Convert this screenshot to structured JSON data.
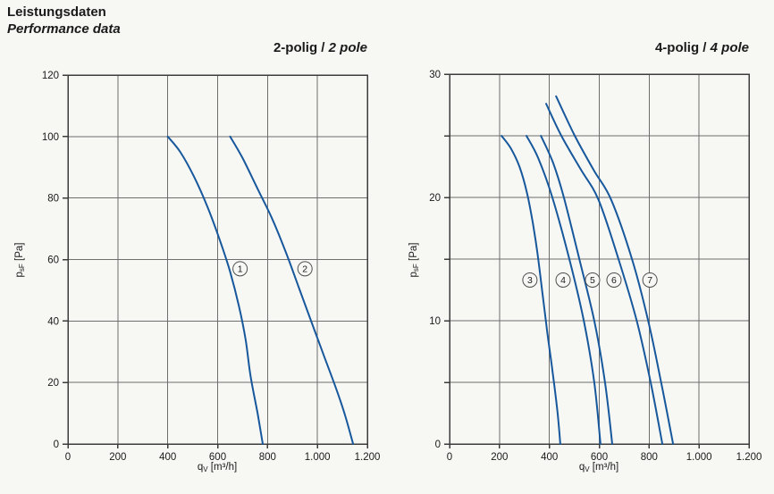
{
  "page": {
    "title_de": "Leistungsdaten",
    "title_en": "Performance data"
  },
  "colors": {
    "background": "#f7f7f4",
    "text": "#1a1a1a",
    "curve": "#17589c",
    "grid": "#6e6e6e",
    "border": "#3c3c3c",
    "marker_stroke": "#4d4d4d"
  },
  "chart_data": [
    {
      "type": "line",
      "title_bold": "2-polig / ",
      "title_italic": "2 pole",
      "xlabel": {
        "base": "q",
        "sub": "V",
        "rest": " [m³/h]"
      },
      "ylabel": {
        "base": "p",
        "sub": "sF",
        "rest": " [Pa]"
      },
      "xlim": [
        0,
        1200
      ],
      "ylim": [
        0,
        120
      ],
      "x_grid_step": 200,
      "x_tick_labels": [
        "0",
        "200",
        "400",
        "600",
        "800",
        "1.000",
        "1.200"
      ],
      "y_grid_step": 20,
      "y_label_step": 20,
      "grid": true,
      "legend": "none",
      "series": [
        {
          "name": "1",
          "marker": {
            "x": 690,
            "y": 57
          },
          "points": [
            [
              400,
              100
            ],
            [
              450,
              95
            ],
            [
              505,
              87
            ],
            [
              560,
              77
            ],
            [
              610,
              66
            ],
            [
              650,
              56
            ],
            [
              685,
              45
            ],
            [
              712,
              34
            ],
            [
              732,
              22
            ],
            [
              760,
              10
            ],
            [
              781,
              0
            ]
          ]
        },
        {
          "name": "2",
          "marker": {
            "x": 950,
            "y": 57
          },
          "points": [
            [
              650,
              100
            ],
            [
              700,
              93
            ],
            [
              760,
              83
            ],
            [
              820,
              73
            ],
            [
              875,
              62
            ],
            [
              925,
              51
            ],
            [
              970,
              41
            ],
            [
              1020,
              30
            ],
            [
              1075,
              18
            ],
            [
              1112,
              9
            ],
            [
              1143,
              0
            ]
          ]
        }
      ]
    },
    {
      "type": "line",
      "title_bold": "4-polig / ",
      "title_italic": "4 pole",
      "xlabel": {
        "base": "q",
        "sub": "V",
        "rest": " [m³/h]"
      },
      "ylabel": {
        "base": "p",
        "sub": "sF",
        "rest": " [Pa]"
      },
      "xlim": [
        0,
        1200
      ],
      "ylim": [
        0,
        30
      ],
      "x_grid_step": 200,
      "x_tick_labels": [
        "0",
        "200",
        "400",
        "600",
        "800",
        "1.000",
        "1.200"
      ],
      "y_grid_step": 5,
      "y_label_step": 10,
      "grid": true,
      "legend": "none",
      "series": [
        {
          "name": "3",
          "marker": {
            "x": 322,
            "y": 13.3
          },
          "points": [
            [
              208,
              25
            ],
            [
              245,
              24
            ],
            [
              280,
              22.5
            ],
            [
              310,
              20.4
            ],
            [
              333,
              18
            ],
            [
              352,
              15.5
            ],
            [
              372,
              12.3
            ],
            [
              392,
              9
            ],
            [
              412,
              6
            ],
            [
              432,
              2.7
            ],
            [
              444,
              0
            ]
          ]
        },
        {
          "name": "4",
          "marker": {
            "x": 455,
            "y": 13.3
          },
          "points": [
            [
              308,
              25
            ],
            [
              355,
              23.2
            ],
            [
              412,
              20
            ],
            [
              480,
              15
            ],
            [
              538,
              10
            ],
            [
              580,
              5
            ],
            [
              605,
              0
            ]
          ]
        },
        {
          "name": "5",
          "marker": {
            "x": 573,
            "y": 13.3
          },
          "points": [
            [
              366,
              25
            ],
            [
              415,
              22.8
            ],
            [
              458,
              20
            ],
            [
              520,
              15
            ],
            [
              580,
              10
            ],
            [
              623,
              5
            ],
            [
              652,
              0
            ]
          ]
        },
        {
          "name": "6",
          "marker": {
            "x": 659,
            "y": 13.3
          },
          "points": [
            [
              387,
              27.6
            ],
            [
              448,
              25
            ],
            [
              525,
              22.3
            ],
            [
              597,
              19.8
            ],
            [
              677,
              15
            ],
            [
              750,
              10
            ],
            [
              806,
              5
            ],
            [
              853,
              0
            ]
          ]
        },
        {
          "name": "7",
          "marker": {
            "x": 803,
            "y": 13.3
          },
          "points": [
            [
              427,
              28.2
            ],
            [
              502,
              25
            ],
            [
              578,
              22.2
            ],
            [
              648,
              19.8
            ],
            [
              731,
              15
            ],
            [
              796,
              10
            ],
            [
              848,
              5
            ],
            [
              896,
              0
            ]
          ]
        }
      ]
    }
  ]
}
